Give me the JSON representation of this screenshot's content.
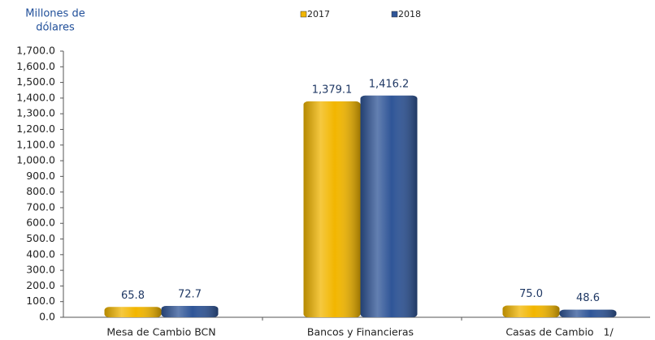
{
  "chart_data": {
    "type": "bar",
    "y_label": [
      "Millones de",
      "dólares"
    ],
    "categories": [
      "Mesa de Cambio BCN",
      "Bancos y Financieras",
      "Casas de Cambio   1/"
    ],
    "series": [
      {
        "name": "2017",
        "color": "#f2b600",
        "values": [
          65.8,
          1379.1,
          75.0
        ],
        "value_labels": [
          "65.8",
          "1,379.1",
          "75.0"
        ]
      },
      {
        "name": "2018",
        "color": "#2f5597",
        "values": [
          72.7,
          1416.2,
          48.6
        ],
        "value_labels": [
          "72.7",
          "1,416.2",
          "48.6"
        ]
      }
    ],
    "ylim": [
      0,
      1700
    ],
    "yticks": [
      {
        "value": 0,
        "label": "0.0"
      },
      {
        "value": 100,
        "label": "100.0"
      },
      {
        "value": 200,
        "label": "200.0"
      },
      {
        "value": 300,
        "label": "300.0"
      },
      {
        "value": 400,
        "label": "400.0"
      },
      {
        "value": 500,
        "label": "500.0"
      },
      {
        "value": 600,
        "label": "600.0"
      },
      {
        "value": 700,
        "label": "700.0"
      },
      {
        "value": 800,
        "label": "800.0"
      },
      {
        "value": 900,
        "label": "900.0"
      },
      {
        "value": 1000,
        "label": "1,000.0"
      },
      {
        "value": 1100,
        "label": "1,100.0"
      },
      {
        "value": 1200,
        "label": "1,200.0"
      },
      {
        "value": 1300,
        "label": "1,300.0"
      },
      {
        "value": 1400,
        "label": "1,400.0"
      },
      {
        "value": 1500,
        "label": "1,500.0"
      },
      {
        "value": 1600,
        "label": "1,600.0"
      },
      {
        "value": 1700,
        "label": "1,700.0"
      }
    ],
    "legend": "top"
  }
}
